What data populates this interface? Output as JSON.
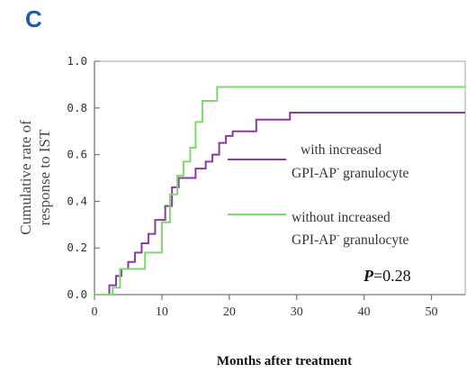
{
  "panel_label": "C",
  "chart_data": {
    "type": "line",
    "title": "",
    "ylabel_line1": "Cumulative rate of",
    "ylabel_line2": "response to IST",
    "xlabel": "Months after treatment",
    "xlim": [
      0,
      55
    ],
    "ylim": [
      0,
      1.0
    ],
    "x_ticks": [
      0,
      10,
      20,
      30,
      40,
      50
    ],
    "y_ticks": [
      "0.0",
      "0.2",
      "0.4",
      "0.6",
      "0.8",
      "1.0"
    ],
    "grid": false,
    "annotation": {
      "p_label": "P",
      "p_value": "=0.28"
    },
    "series": [
      {
        "name": "with increased GPI-AP- granulocyte",
        "legend_line1": "with increased",
        "legend_line2_main": "GPI-AP",
        "legend_line2_sup": "-",
        "legend_line2_tail": " granulocyte",
        "color": "#8b3a9e",
        "x": [
          0,
          2.2,
          3.2,
          4.0,
          5.0,
          6.0,
          7.0,
          8.0,
          9.0,
          10.5,
          11.5,
          12.5,
          15.0,
          16.5,
          17.5,
          18.5,
          19.5,
          20.5,
          24.0,
          29.0,
          55
        ],
        "y": [
          0,
          0.04,
          0.08,
          0.11,
          0.14,
          0.18,
          0.22,
          0.26,
          0.32,
          0.38,
          0.46,
          0.5,
          0.54,
          0.57,
          0.6,
          0.65,
          0.68,
          0.7,
          0.75,
          0.78,
          0.78
        ]
      },
      {
        "name": "without increased GPI-AP- granulocyte",
        "legend_line1": "without increased",
        "legend_line2_main": "GPI-AP",
        "legend_line2_sup": "-",
        "legend_line2_tail": " granulocyte",
        "color": "#7ed870",
        "x": [
          0,
          2.7,
          3.8,
          7.5,
          10.0,
          11.2,
          12.3,
          13.2,
          14.2,
          15.0,
          16.0,
          18.2,
          55
        ],
        "y": [
          0,
          0.03,
          0.11,
          0.18,
          0.31,
          0.43,
          0.51,
          0.57,
          0.63,
          0.74,
          0.83,
          0.89,
          0.89
        ]
      }
    ]
  }
}
